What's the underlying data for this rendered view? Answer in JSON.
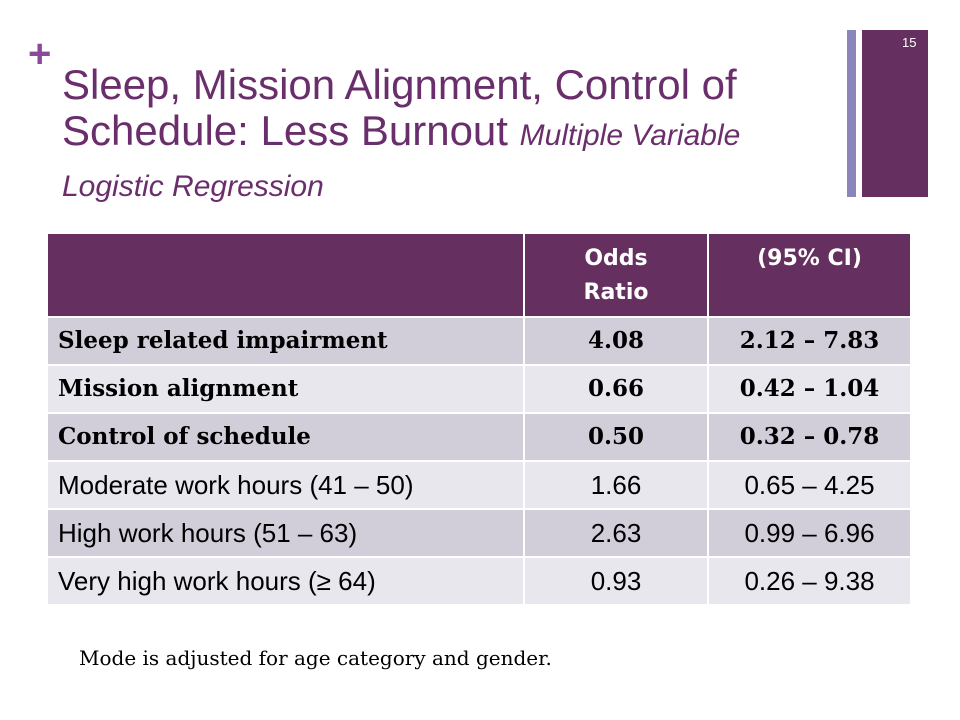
{
  "slide_number": "15",
  "plus_glyph": "+",
  "title": {
    "main": "Sleep, Mission Alignment, Control of Schedule: Less Burnout",
    "subtitle": "Multiple Variable Logistic Regression"
  },
  "table": {
    "headers": {
      "odds_ratio": "Odds Ratio",
      "ci": "(95% CI)"
    },
    "rows": [
      {
        "label": "Sleep related impairment",
        "odds_ratio": "4.08",
        "ci": "2.12 – 7.83"
      },
      {
        "label": "Mission alignment",
        "odds_ratio": "0.66",
        "ci": "0.42 – 1.04"
      },
      {
        "label": "Control of schedule",
        "odds_ratio": "0.50",
        "ci": "0.32 – 0.78"
      },
      {
        "label": "Moderate work hours (41 – 50)",
        "odds_ratio": "1.66",
        "ci": "0.65 – 4.25"
      },
      {
        "label": "High work hours (51 – 63)",
        "odds_ratio": "2.63",
        "ci": "0.99 – 6.96"
      },
      {
        "label": "Very high work hours (≥ 64)",
        "odds_ratio": "0.93",
        "ci": "0.26 – 9.38"
      }
    ]
  },
  "footnote": "Mode is adjusted for age category and gender.",
  "colors": {
    "accent_purple": "#65305F",
    "title_purple": "#6A2E6C",
    "plus_purple": "#8B4A99",
    "side_bar_light": "#8A85BA",
    "row_dark": "#D1CEDA",
    "row_light": "#E9E7EE"
  }
}
